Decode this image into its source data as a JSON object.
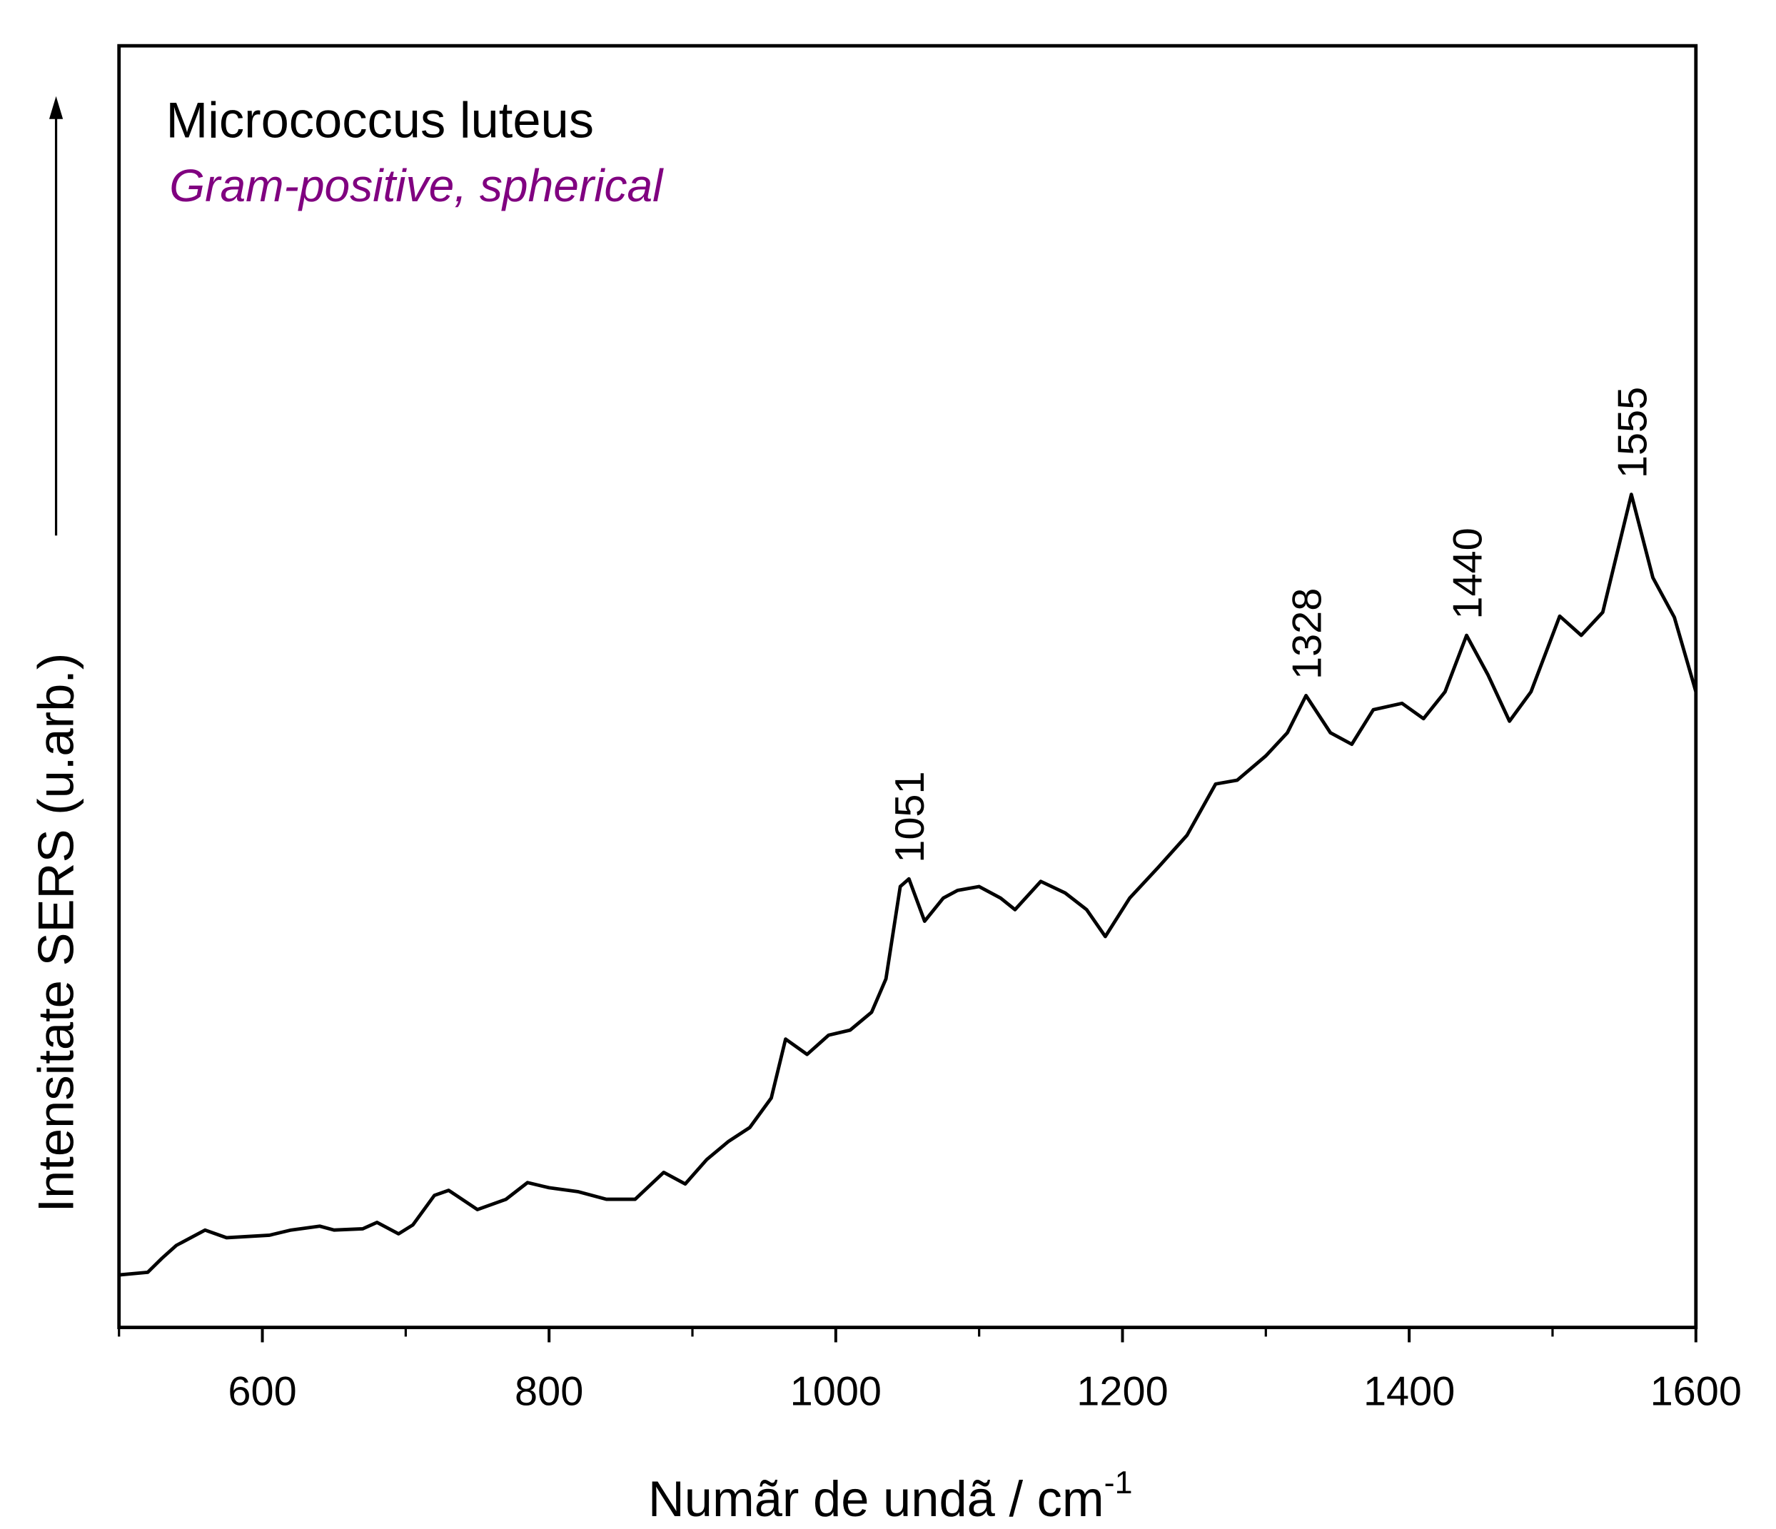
{
  "chart_data": {
    "type": "line",
    "title": "Micrococcus luteus",
    "subtitle": "Gram-positive, spherical",
    "x_label": "Numãr de undã / cm",
    "x_label_sup": "-1",
    "y_label": "Intensitate SERS (u.arb.)",
    "xlim": [
      500,
      1600
    ],
    "xticks": [
      600,
      800,
      1000,
      1200,
      1400,
      1600
    ],
    "xminorticks": [
      500,
      700,
      900,
      1100,
      1300,
      1500
    ],
    "ylim": [
      0,
      100
    ],
    "peak_labels": [
      1051,
      1328,
      1440,
      1555
    ],
    "series": [
      {
        "color": "#000000",
        "x": [
          500,
          520,
          530,
          540,
          560,
          575,
          590,
          605,
          620,
          640,
          650,
          670,
          680,
          695,
          705,
          720,
          730,
          750,
          770,
          785,
          800,
          820,
          840,
          860,
          880,
          895,
          910,
          925,
          940,
          955,
          965,
          980,
          995,
          1010,
          1025,
          1035,
          1045,
          1051,
          1062,
          1075,
          1085,
          1100,
          1115,
          1125,
          1143,
          1160,
          1175,
          1188,
          1205,
          1225,
          1245,
          1265,
          1280,
          1300,
          1315,
          1328,
          1345,
          1360,
          1375,
          1395,
          1410,
          1425,
          1440,
          1455,
          1470,
          1485,
          1505,
          1520,
          1535,
          1555,
          1570,
          1585,
          1600
        ],
        "values": [
          4.1,
          4.3,
          5.4,
          6.4,
          7.6,
          7.0,
          7.1,
          7.2,
          7.6,
          7.9,
          7.6,
          7.7,
          8.2,
          7.3,
          8.0,
          10.3,
          10.7,
          9.2,
          10.0,
          11.3,
          10.9,
          10.6,
          10.0,
          10.0,
          12.1,
          11.2,
          13.1,
          14.5,
          15.6,
          17.9,
          22.5,
          21.3,
          22.8,
          23.2,
          24.6,
          27.2,
          34.4,
          35.0,
          31.7,
          33.5,
          34.1,
          34.4,
          33.5,
          32.6,
          34.8,
          33.9,
          32.6,
          30.5,
          33.5,
          35.9,
          38.4,
          42.4,
          42.7,
          44.6,
          46.4,
          49.3,
          46.4,
          45.5,
          48.2,
          48.7,
          47.5,
          49.6,
          54.0,
          50.9,
          47.3,
          49.6,
          55.5,
          54.0,
          55.8,
          65.0,
          58.5,
          55.4,
          49.6
        ]
      }
    ]
  }
}
